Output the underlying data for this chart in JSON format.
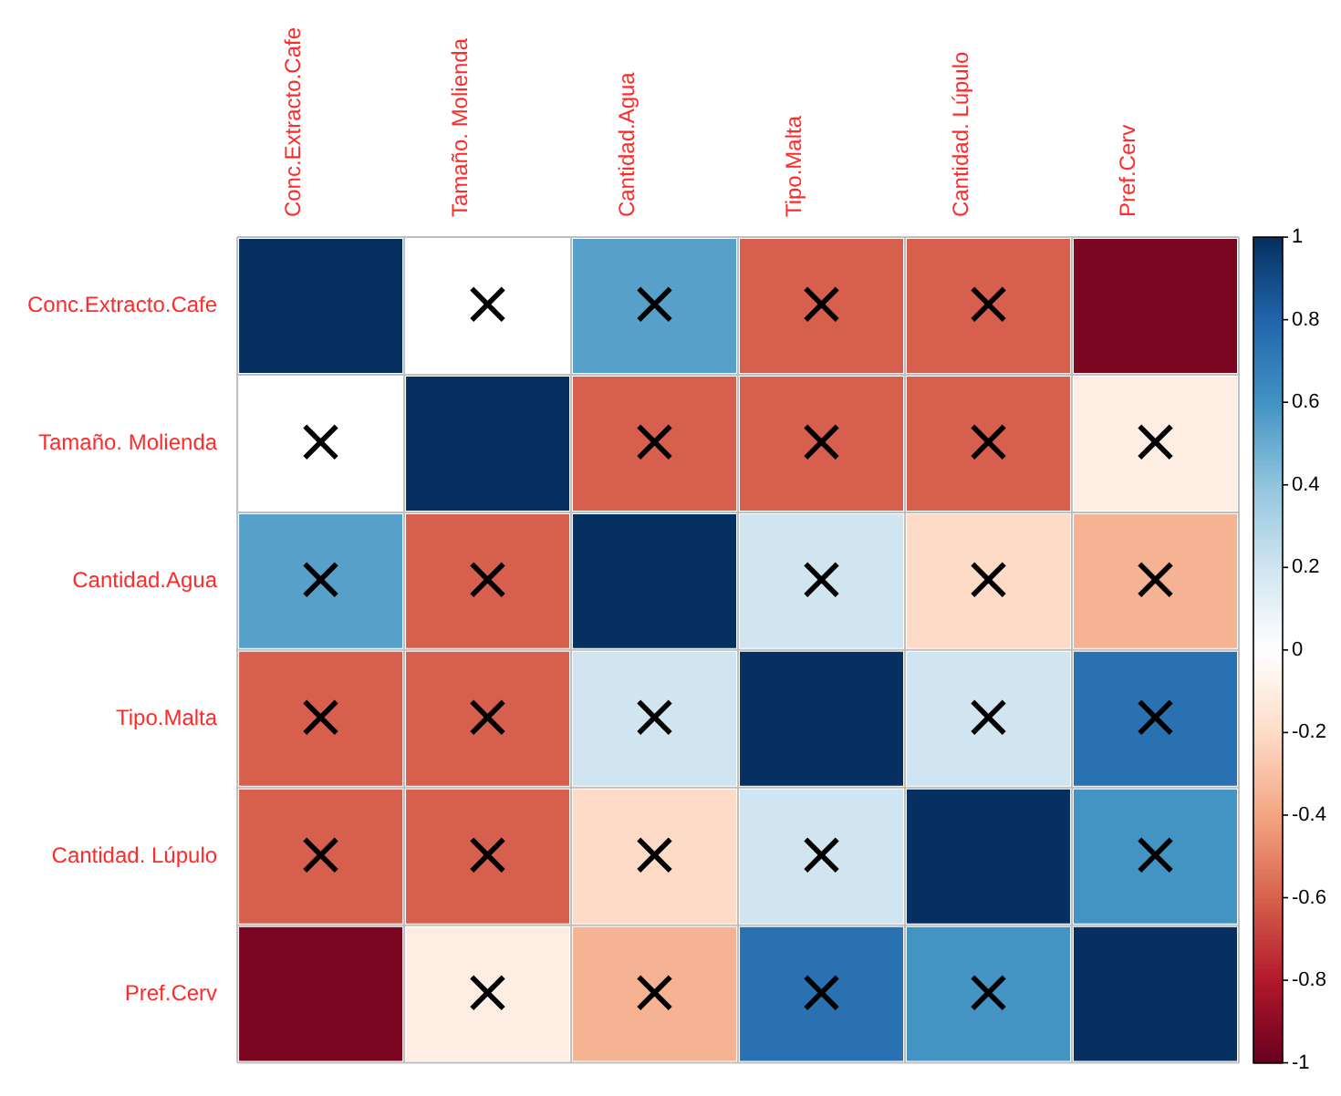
{
  "chart_data": {
    "type": "heatmap",
    "categories": [
      "Conc.Extracto.Cafe",
      "Tamaño. Molienda",
      "Cantidad.Agua",
      "Tipo.Malta",
      "Cantidad. Lúpulo",
      "Pref.Cerv"
    ],
    "y_categories": [
      "Conc.Extracto.Cafe",
      "Tamaño. Molienda",
      "Cantidad.Agua",
      "Tipo.Malta",
      "Cantidad. Lúpulo",
      "Pref.Cerv"
    ],
    "cells": [
      [
        1,
        0,
        0.55,
        -0.6,
        -0.6,
        -0.95
      ],
      [
        0,
        1,
        -0.6,
        -0.6,
        -0.6,
        -0.1
      ],
      [
        0.55,
        -0.6,
        1,
        0.2,
        -0.2,
        -0.35
      ],
      [
        -0.6,
        -0.6,
        0.2,
        1,
        0.2,
        0.75
      ],
      [
        -0.6,
        -0.6,
        -0.2,
        0.2,
        1,
        0.6
      ],
      [
        -0.95,
        -0.1,
        -0.35,
        0.75,
        0.6,
        1
      ]
    ],
    "cell_labels": [
      [
        null,
        "×",
        "×",
        "×",
        "×",
        null
      ],
      [
        "×",
        null,
        "×",
        "×",
        "×",
        "×"
      ],
      [
        "×",
        "×",
        null,
        "×",
        "×",
        "×"
      ],
      [
        "×",
        "×",
        "×",
        null,
        "×",
        "×"
      ],
      [
        "×",
        "×",
        "×",
        "×",
        null,
        "×"
      ],
      [
        null,
        "×",
        "×",
        "×",
        "×",
        null
      ]
    ],
    "clim": [
      -1,
      1
    ],
    "cticks": [
      -1,
      -0.8,
      -0.6,
      -0.4,
      -0.2,
      0,
      0.2,
      0.4,
      0.6,
      0.8,
      1
    ]
  }
}
